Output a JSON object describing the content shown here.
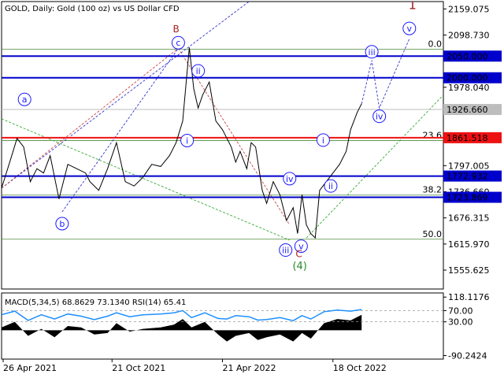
{
  "header": {
    "main_title": "GOLD, Daily:  Gold (100 oz) vs US Dollar CFD",
    "indicator_title": "MACD(5,34,5) 68.8629 73.1340 RSI(14) 65.41"
  },
  "colors": {
    "price_line": "#000000",
    "blue_level": "#0000cc",
    "red_level": "#ee1111",
    "fib_green": "#4a8a3a",
    "wave_label": "#1a1aff",
    "wave_red": "#aa2222",
    "wave_green": "#2a8a2a",
    "trend_red": "#cc4444",
    "trend_blue": "#3333cc",
    "trend_green": "#33aa33",
    "rsi_line": "#1e90ff",
    "macd_hist": "#000000"
  },
  "chart_data": {
    "type": "line",
    "x_tick_labels": [
      "26 Apr 2021",
      "21 Oct 2021",
      "21 Apr 2022",
      "18 Oct 2022"
    ],
    "x_tick_positions": [
      0,
      0.25,
      0.5,
      0.75
    ],
    "x_range": [
      0,
      1
    ],
    "y_tick_labels": [
      "2159.075",
      "2098.730",
      "1978.040",
      "1797.005",
      "1736.660",
      "1676.315",
      "1615.970",
      "1555.625"
    ],
    "y_ticks": [
      2159.075,
      2098.73,
      1978.04,
      1797.005,
      1736.66,
      1676.315,
      1615.97,
      1555.625
    ],
    "y_range": [
      1512,
      2176
    ],
    "price_series": [
      [
        0.0,
        1745
      ],
      [
        0.02,
        1810
      ],
      [
        0.035,
        1860
      ],
      [
        0.05,
        1840
      ],
      [
        0.065,
        1760
      ],
      [
        0.08,
        1790
      ],
      [
        0.095,
        1780
      ],
      [
        0.11,
        1820
      ],
      [
        0.13,
        1720
      ],
      [
        0.15,
        1800
      ],
      [
        0.17,
        1790
      ],
      [
        0.19,
        1780
      ],
      [
        0.2,
        1760
      ],
      [
        0.22,
        1740
      ],
      [
        0.24,
        1790
      ],
      [
        0.26,
        1850
      ],
      [
        0.28,
        1760
      ],
      [
        0.3,
        1750
      ],
      [
        0.32,
        1770
      ],
      [
        0.34,
        1800
      ],
      [
        0.36,
        1795
      ],
      [
        0.38,
        1820
      ],
      [
        0.395,
        1850
      ],
      [
        0.41,
        1900
      ],
      [
        0.425,
        2070
      ],
      [
        0.435,
        1975
      ],
      [
        0.445,
        1930
      ],
      [
        0.455,
        1960
      ],
      [
        0.47,
        1990
      ],
      [
        0.485,
        1900
      ],
      [
        0.5,
        1880
      ],
      [
        0.51,
        1860
      ],
      [
        0.52,
        1840
      ],
      [
        0.53,
        1805
      ],
      [
        0.54,
        1830
      ],
      [
        0.555,
        1790
      ],
      [
        0.565,
        1850
      ],
      [
        0.575,
        1840
      ],
      [
        0.59,
        1740
      ],
      [
        0.6,
        1710
      ],
      [
        0.615,
        1760
      ],
      [
        0.63,
        1730
      ],
      [
        0.645,
        1670
      ],
      [
        0.66,
        1700
      ],
      [
        0.67,
        1640
      ],
      [
        0.68,
        1730
      ],
      [
        0.69,
        1660
      ],
      [
        0.7,
        1640
      ],
      [
        0.71,
        1630
      ],
      [
        0.72,
        1740
      ],
      [
        0.735,
        1760
      ],
      [
        0.75,
        1780
      ],
      [
        0.765,
        1800
      ],
      [
        0.78,
        1830
      ],
      [
        0.79,
        1880
      ],
      [
        0.805,
        1920
      ],
      [
        0.815,
        1940
      ]
    ],
    "levels": [
      {
        "value": 2050.0,
        "label": "2050.000",
        "style": "blue"
      },
      {
        "value": 2000.0,
        "label": "2000.000",
        "style": "blue"
      },
      {
        "value": 1926.66,
        "label": "1926.660",
        "style": "current"
      },
      {
        "value": 1861.518,
        "label": "1861.518",
        "style": "red"
      },
      {
        "value": 1772.932,
        "label": "1772.932",
        "style": "blue"
      },
      {
        "value": 1723.869,
        "label": "1723.869",
        "style": "blue"
      }
    ],
    "fib_levels": [
      {
        "value": 2066,
        "label": "0.0"
      },
      {
        "value": 1855,
        "label": "23.6"
      },
      {
        "value": 1729,
        "label": "38.2"
      },
      {
        "value": 1627,
        "label": "50.0"
      }
    ],
    "annotations": [
      {
        "text": "1",
        "x": 0.93,
        "y": 2170,
        "kind": "red-big"
      },
      {
        "text": "B",
        "x": 0.395,
        "y": 2112,
        "kind": "red"
      },
      {
        "text": "c",
        "x": 0.4,
        "y": 2081,
        "kind": "circle"
      },
      {
        "text": "a",
        "x": 0.052,
        "y": 1950,
        "kind": "circle"
      },
      {
        "text": "ii",
        "x": 0.445,
        "y": 2016,
        "kind": "circle"
      },
      {
        "text": "i",
        "x": 0.42,
        "y": 1855,
        "kind": "circle"
      },
      {
        "text": "b",
        "x": 0.137,
        "y": 1663,
        "kind": "circle"
      },
      {
        "text": "iv",
        "x": 0.652,
        "y": 1767,
        "kind": "circle"
      },
      {
        "text": "iii",
        "x": 0.643,
        "y": 1602,
        "kind": "circle"
      },
      {
        "text": "v",
        "x": 0.678,
        "y": 1611,
        "kind": "circle"
      },
      {
        "text": "C",
        "x": 0.673,
        "y": 1593,
        "kind": "red"
      },
      {
        "text": "(4)",
        "x": 0.675,
        "y": 1567,
        "kind": "green"
      },
      {
        "text": "i",
        "x": 0.728,
        "y": 1856,
        "kind": "circle"
      },
      {
        "text": "ii",
        "x": 0.745,
        "y": 1750,
        "kind": "circle"
      },
      {
        "text": "iii",
        "x": 0.838,
        "y": 2060,
        "kind": "circle"
      },
      {
        "text": "iv",
        "x": 0.855,
        "y": 1911,
        "kind": "circle"
      },
      {
        "text": "v",
        "x": 0.923,
        "y": 2114,
        "kind": "circle"
      }
    ],
    "indicator": {
      "y_tick_labels": [
        "118.1176",
        "70.00",
        "30.00",
        "-90.2424"
      ],
      "y_ticks": [
        118.1176,
        70,
        30,
        -90.2424
      ],
      "y_range": [
        -100,
        130
      ],
      "rsi_series": [
        [
          0.0,
          55
        ],
        [
          0.03,
          68
        ],
        [
          0.06,
          35
        ],
        [
          0.09,
          55
        ],
        [
          0.12,
          40
        ],
        [
          0.15,
          58
        ],
        [
          0.18,
          50
        ],
        [
          0.21,
          38
        ],
        [
          0.24,
          50
        ],
        [
          0.26,
          62
        ],
        [
          0.29,
          48
        ],
        [
          0.32,
          55
        ],
        [
          0.36,
          58
        ],
        [
          0.39,
          62
        ],
        [
          0.41,
          70
        ],
        [
          0.43,
          45
        ],
        [
          0.46,
          62
        ],
        [
          0.49,
          42
        ],
        [
          0.51,
          40
        ],
        [
          0.53,
          52
        ],
        [
          0.56,
          48
        ],
        [
          0.58,
          36
        ],
        [
          0.6,
          38
        ],
        [
          0.63,
          45
        ],
        [
          0.66,
          34
        ],
        [
          0.68,
          52
        ],
        [
          0.7,
          40
        ],
        [
          0.73,
          66
        ],
        [
          0.76,
          72
        ],
        [
          0.79,
          68
        ],
        [
          0.815,
          74
        ]
      ],
      "macd_series": [
        [
          0.0,
          10
        ],
        [
          0.03,
          30
        ],
        [
          0.06,
          -20
        ],
        [
          0.09,
          5
        ],
        [
          0.12,
          -25
        ],
        [
          0.15,
          15
        ],
        [
          0.18,
          10
        ],
        [
          0.21,
          -15
        ],
        [
          0.24,
          -10
        ],
        [
          0.26,
          25
        ],
        [
          0.29,
          -5
        ],
        [
          0.32,
          5
        ],
        [
          0.36,
          10
        ],
        [
          0.39,
          20
        ],
        [
          0.41,
          40
        ],
        [
          0.43,
          10
        ],
        [
          0.46,
          30
        ],
        [
          0.49,
          -15
        ],
        [
          0.51,
          -40
        ],
        [
          0.53,
          -20
        ],
        [
          0.56,
          -10
        ],
        [
          0.58,
          -35
        ],
        [
          0.6,
          -25
        ],
        [
          0.63,
          -15
        ],
        [
          0.66,
          -40
        ],
        [
          0.68,
          -10
        ],
        [
          0.7,
          -30
        ],
        [
          0.73,
          25
        ],
        [
          0.76,
          40
        ],
        [
          0.79,
          35
        ],
        [
          0.815,
          55
        ]
      ]
    }
  }
}
